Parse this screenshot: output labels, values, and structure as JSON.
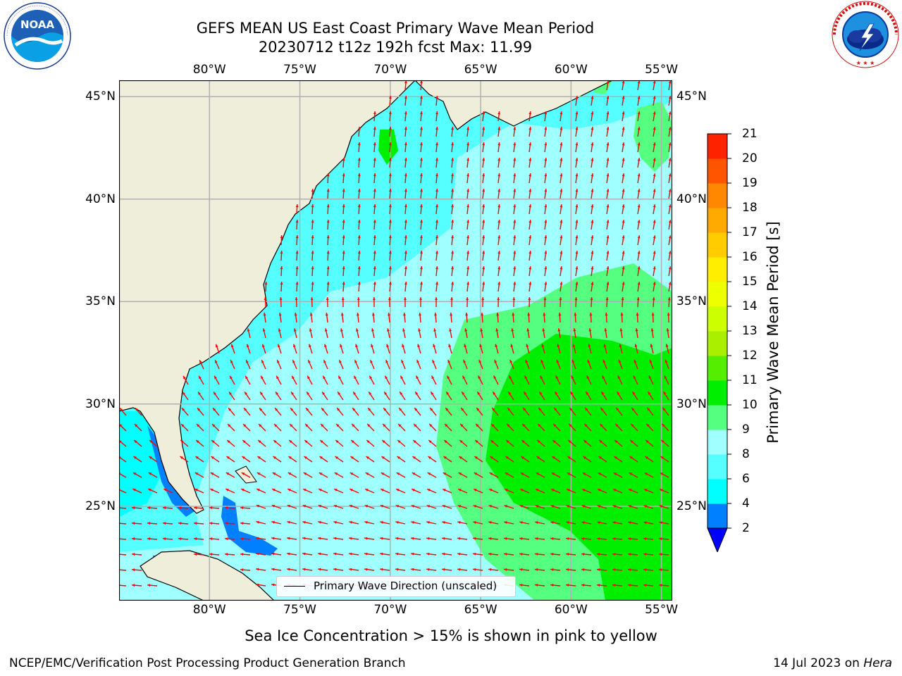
{
  "title": {
    "line1": "GEFS MEAN US East Coast Primary Wave Mean Period",
    "line2": "20230712 t12z 192h fcst   Max: 11.99"
  },
  "logos": {
    "left": {
      "name": "noaa-logo",
      "text": "NOAA",
      "ring_text": "NATIONAL OCEANIC AND ATMOSPHERIC ADMINISTRATION · U.S. DEPARTMENT OF COMMERCE"
    },
    "right": {
      "name": "nws-logo",
      "ring_text": "NATIONAL WEATHER SERVICE"
    }
  },
  "map": {
    "lon_ticks": [
      "80°W",
      "75°W",
      "70°W",
      "65°W",
      "60°W",
      "55°W"
    ],
    "lat_ticks": [
      "45°N",
      "40°N",
      "35°N",
      "30°N",
      "25°N"
    ],
    "lon_values": [
      -80,
      -75,
      -70,
      -65,
      -60,
      -55
    ],
    "lat_values": [
      45,
      40,
      35,
      30,
      25
    ],
    "extent": {
      "lon_min": -85,
      "lon_max": -54.4,
      "lat_min": 20.4,
      "lat_max": 45.8
    },
    "land_color": "#efeedb",
    "arrow_color": "#ff0000",
    "grid_color": "#b0b0b0"
  },
  "legend": {
    "label": "Primary Wave Direction (unscaled)"
  },
  "colorbar": {
    "label": "Primary Wave Mean Period [s]",
    "ticks": [
      "2",
      "4",
      "6",
      "8",
      "9",
      "10",
      "11",
      "12",
      "13",
      "14",
      "15",
      "16",
      "17",
      "18",
      "19",
      "20",
      "21"
    ],
    "colors": [
      "#0000ff",
      "#0080ff",
      "#00ffff",
      "#55ffff",
      "#a0ffff",
      "#55ff80",
      "#00ee00",
      "#55ee00",
      "#aaee00",
      "#ccff00",
      "#eeff00",
      "#ffee00",
      "#ffcc00",
      "#ffaa00",
      "#ff8800",
      "#ff5500",
      "#ff2200",
      "#ff0000"
    ]
  },
  "note": "Sea Ice Concentration > 15% is shown in pink to yellow",
  "footer": {
    "left": "NCEP/EMC/Verification Post Processing Product Generation Branch",
    "right_date": "14 Jul 2023 on ",
    "right_machine": "Hera"
  }
}
